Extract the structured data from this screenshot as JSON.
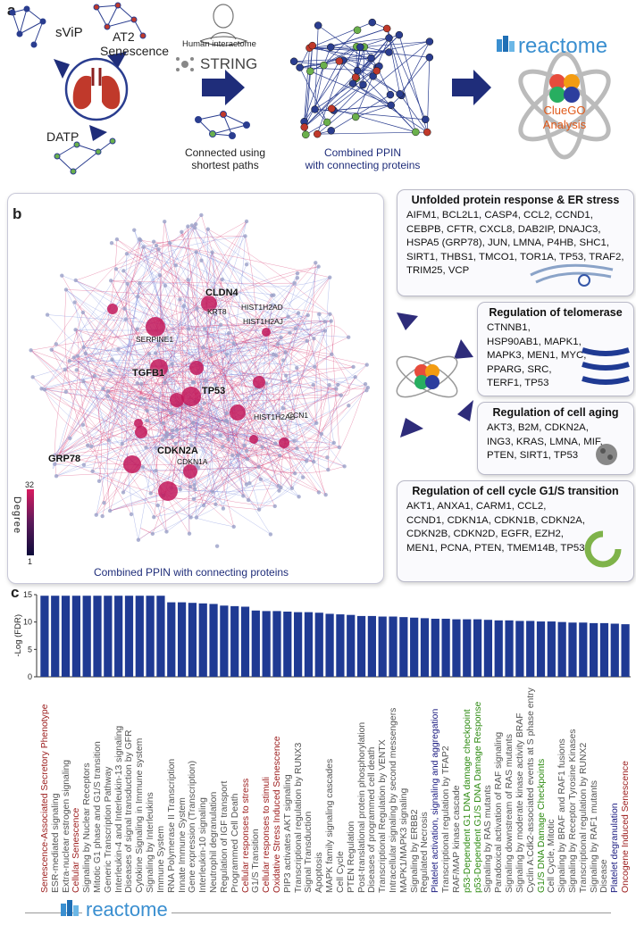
{
  "panel_a": {
    "letter": "a",
    "labels": {
      "svip": "sViP",
      "at2_1": "AT2",
      "at2_2": "Senescence",
      "datp": "DATP",
      "human_interactome": "Human interactome",
      "string": "STRING",
      "connected_1": "Connected using",
      "connected_2": "shortest paths",
      "ppin_1": "Combined PPIN",
      "ppin_2": "with connecting proteins",
      "reactome": "reactome",
      "cluego_1": "ClueGO",
      "cluego_2": "Analysis"
    }
  },
  "panel_b": {
    "letter": "b",
    "network_caption": "Combined PPIN with connecting proteins",
    "degree_label": "Degree",
    "degree_max": "32",
    "degree_min": "1",
    "hub_labels": [
      "CLDN4",
      "KRT8",
      "HIST1H2AD",
      "HIST1H2AJ",
      "SERPINE1",
      "TGFB1",
      "TP53",
      "HIST1H2AB",
      "CDKN2A",
      "CDKN1A",
      "GRP78",
      "CCN1"
    ],
    "boxes": [
      {
        "title": "Unfolded protein response & ER stress",
        "body": "AIFM1, BCL2L1, CASP4, CCL2, CCND1, CEBPB, CFTR, CXCL8, DAB2IP, DNAJC3, HSPA5 (GRP78), JUN, LMNA, P4HB, SHC1, SIRT1, THBS1, TMCO1, TOR1A, TP53, TRAF2, TRIM25, VCP"
      },
      {
        "title": "Regulation of telomerase",
        "body": "CTNNB1, HSP90AB1, MAPK1, MAPK3, MEN1, MYC, PPARG, SRC, TERF1, TP53"
      },
      {
        "title": "Regulation of cell aging",
        "body": "AKT3, B2M, CDKN2A, ING3, KRAS, LMNA, MIF, PTEN, SIRT1, TP53"
      },
      {
        "title": "Regulation of cell cycle G1/S transition",
        "body": "AKT1, ANXA1, CARM1, CCL2, CCND1, CDKN1A, CDKN1B, CDKN2A, CDKN2B, CDKN2D, EGFR, EZH2, MEN1, PCNA, PTEN, TMEM14B, TP53"
      }
    ]
  },
  "panel_c": {
    "letter": "c",
    "ylabel": "-Log (FDR)",
    "yticks": [
      "15",
      "10",
      "5",
      "0"
    ],
    "footer_logo": "reactome"
  },
  "chart_data": {
    "type": "bar",
    "ylabel": "-Log (FDR)",
    "ylim": [
      0,
      15
    ],
    "categories": [
      "Senescence-Associated Secretory Phenotype",
      "ESR-mediated signaling",
      "Extra-nuclear estrogen signaling",
      "Cellular Senescence",
      "Signaling by Nuclear Receptors",
      "Mitotic G1 phase and G1/S transition",
      "Generic Transcription Pathway",
      "Interleukin-4 and Interleukin-13 signaling",
      "Diseases of signal transduction by GFR",
      "Cytokine Signaling in Immune system",
      "Signaling by Interleukins",
      "Immune System",
      "RNA Polymerase II Transcription",
      "Innate Immune System",
      "Gene expression (Transcription)",
      "Interleukin-10 signaling",
      "Neutrophil degranulation",
      "Regulation of IGF transport",
      "Programmed Cell Death",
      "Cellular responses to stress",
      "G1/S Transition",
      "Cellular responses to stimuli",
      "Oxidative Stress Induced Senescence",
      "PIP3 activates AKT signaling",
      "Transcriptional regulation by RUNX3",
      "Signal Transduction",
      "Apoptosis",
      "MAPK family signaling cascades",
      "Cell Cycle",
      "PTEN Regulation",
      "Post-translational protein phosphorylation",
      "Diseases of programmed cell death",
      "Transcriptional Regulation by VENTX",
      "Intracellular signaling by second messengers",
      "MAPK1/MAPK3 signaling",
      "Signaling by ERBB2",
      "Regulated Necrosis",
      "Platelet activation, signaling and aggregation",
      "Transcriptional regulation by TFAP2",
      "RAF/MAP kinase cascade",
      "p53-Dependent G1 DNA damage checkpoint",
      "p53-Dependent G1/S DNA Damage Response",
      "Signaling by RAS mutants",
      "Paradoxical activation of RAF signaling",
      "Signaling downstream of RAS mutants",
      "Signaling by moderate kinase activity BRAF",
      "Cyclin A:Cdk2-associated events at S phase entry",
      "G1/S DNA Damage Checkpoints",
      "Cell Cycle, Mitotic",
      "Signaling by BRAF and RAF1 fusions",
      "Signaling by Receptor Tyrosine Kinases",
      "Transcriptional regulation by RUNX2",
      "Signaling by RAF1 mutants",
      "Disease",
      "Platelet degranulation",
      "Oncogene Induced Senescence"
    ],
    "values": [
      14.8,
      14.8,
      14.8,
      14.8,
      14.8,
      14.8,
      14.8,
      14.8,
      14.8,
      14.8,
      14.8,
      14.8,
      13.6,
      13.6,
      13.5,
      13.4,
      13.3,
      13.0,
      12.9,
      12.8,
      12.1,
      12.0,
      12.0,
      11.9,
      11.8,
      11.8,
      11.7,
      11.5,
      11.4,
      11.3,
      11.1,
      11.1,
      11.0,
      11.0,
      10.9,
      10.8,
      10.7,
      10.6,
      10.6,
      10.5,
      10.5,
      10.5,
      10.4,
      10.3,
      10.3,
      10.2,
      10.2,
      10.1,
      10.1,
      10.0,
      9.9,
      9.9,
      9.8,
      9.8,
      9.7,
      9.6
    ],
    "label_colors": [
      "#9b1c1c",
      "#555555",
      "#555555",
      "#9b1c1c",
      "#555555",
      "#555555",
      "#555555",
      "#555555",
      "#555555",
      "#555555",
      "#555555",
      "#555555",
      "#555555",
      "#555555",
      "#555555",
      "#555555",
      "#555555",
      "#555555",
      "#555555",
      "#9b1c1c",
      "#555555",
      "#9b1c1c",
      "#9b1c1c",
      "#555555",
      "#555555",
      "#555555",
      "#555555",
      "#555555",
      "#555555",
      "#555555",
      "#555555",
      "#555555",
      "#555555",
      "#555555",
      "#555555",
      "#555555",
      "#555555",
      "#1c1c80",
      "#555555",
      "#555555",
      "#2e8b12",
      "#2e8b12",
      "#555555",
      "#555555",
      "#555555",
      "#555555",
      "#555555",
      "#2e8b12",
      "#555555",
      "#555555",
      "#555555",
      "#555555",
      "#555555",
      "#555555",
      "#1c1c80",
      "#9b1c1c"
    ],
    "bar_color": "#1f3a93"
  }
}
